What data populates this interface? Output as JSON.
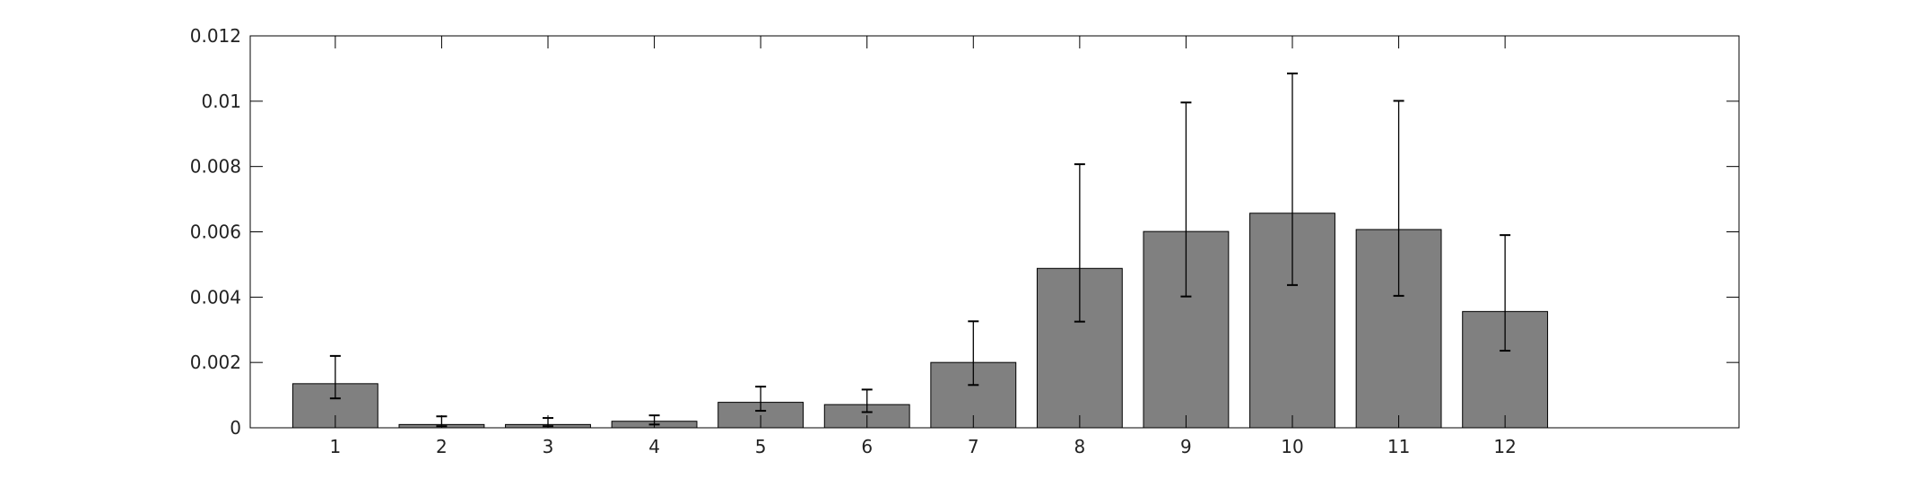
{
  "chart_data": {
    "type": "bar",
    "categories": [
      "1",
      "2",
      "3",
      "4",
      "5",
      "6",
      "7",
      "8",
      "9",
      "10",
      "11",
      "12"
    ],
    "series": [
      {
        "values": [
          0.00135,
          0.0001,
          0.0001,
          0.0002,
          0.00078,
          0.00071,
          0.002,
          0.00488,
          0.00601,
          0.00657,
          0.00607,
          0.00356
        ],
        "error_low": [
          0.0009,
          5e-05,
          5e-05,
          0.0001,
          0.00052,
          0.00048,
          0.00131,
          0.00325,
          0.00402,
          0.00437,
          0.00404,
          0.00236
        ],
        "error_high": [
          0.0022,
          0.00035,
          0.0003,
          0.00038,
          0.00126,
          0.00117,
          0.00326,
          0.00807,
          0.00996,
          0.01085,
          0.01001,
          0.0059
        ]
      }
    ],
    "title": "",
    "xlabel": "",
    "ylabel": "",
    "xlim": [
      0.2,
      14.2
    ],
    "ylim": [
      0,
      0.012
    ],
    "yticks": [
      "0",
      "0.002",
      "0.004",
      "0.006",
      "0.008",
      "0.01",
      "0.012"
    ],
    "bar_color": "#808080",
    "grid": false,
    "legend": "none"
  }
}
